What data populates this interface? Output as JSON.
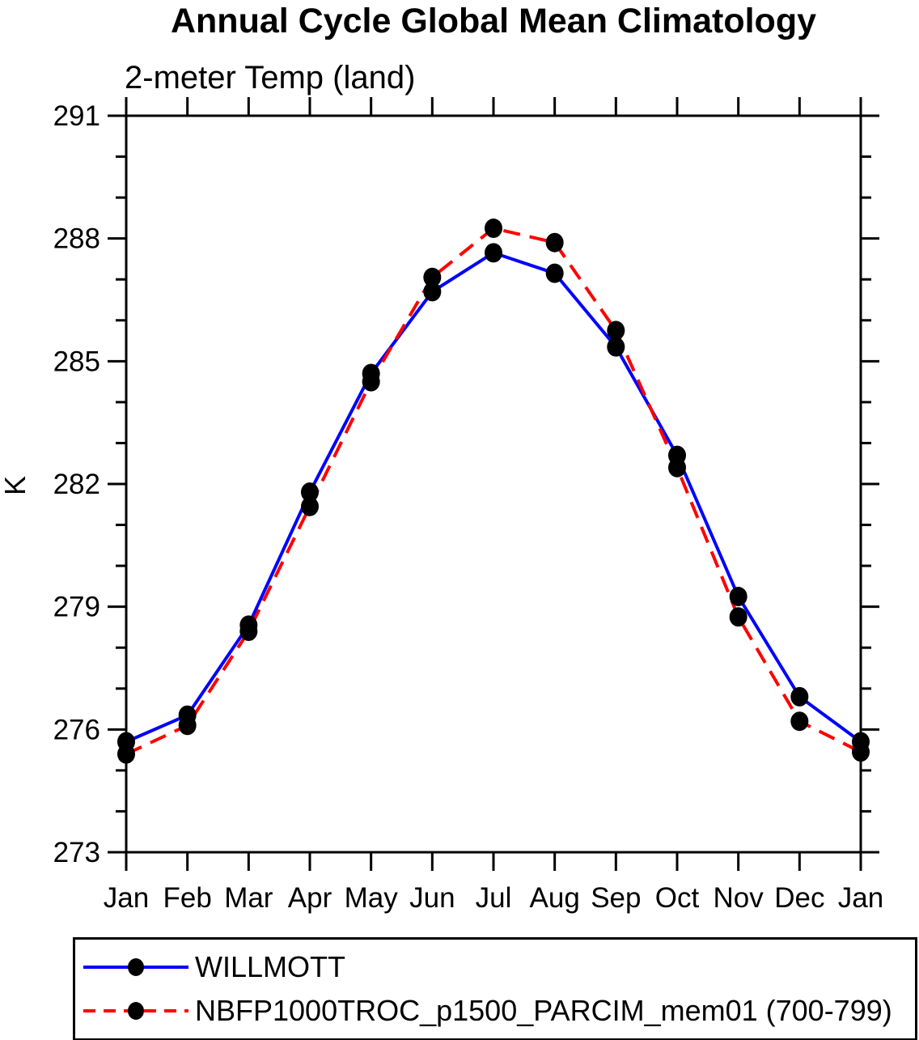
{
  "title": "Annual Cycle Global Mean Climatology",
  "subtitle": "2-meter Temp (land)",
  "colors": {
    "axis": "#000000",
    "marker": "#000000",
    "willmott_blue": "#0000ff",
    "nbfp_red": "#ff0000"
  },
  "chart_data": {
    "type": "line",
    "title": "Annual Cycle Global Mean Climatology",
    "subtitle": "2-meter Temp (land)",
    "ylabel": "K",
    "xlabel": "",
    "x_tick_labels": [
      "Jan",
      "Feb",
      "Mar",
      "Apr",
      "May",
      "Jun",
      "Jul",
      "Aug",
      "Sep",
      "Oct",
      "Nov",
      "Dec",
      "Jan"
    ],
    "y_ticks_major": [
      273,
      276,
      279,
      282,
      285,
      288,
      291
    ],
    "y_minor_step": 1,
    "ylim": [
      273,
      291
    ],
    "grid": "off",
    "legend_position": "bottom",
    "series": [
      {
        "name": "WILLMOTT",
        "color": "#0000ff",
        "style": "solid",
        "marker": "filled-circle",
        "values": [
          275.7,
          276.35,
          278.55,
          281.8,
          284.7,
          286.7,
          287.65,
          287.15,
          285.35,
          282.7,
          279.25,
          276.8,
          275.7
        ]
      },
      {
        "name": "NBFP1000TROC_p1500_PARCIM_mem01 (700-799)",
        "color": "#ff0000",
        "style": "dashed",
        "marker": "filled-circle",
        "values": [
          275.4,
          276.1,
          278.4,
          281.45,
          284.5,
          287.05,
          288.25,
          287.9,
          285.75,
          282.4,
          278.75,
          276.2,
          275.45
        ]
      }
    ]
  }
}
